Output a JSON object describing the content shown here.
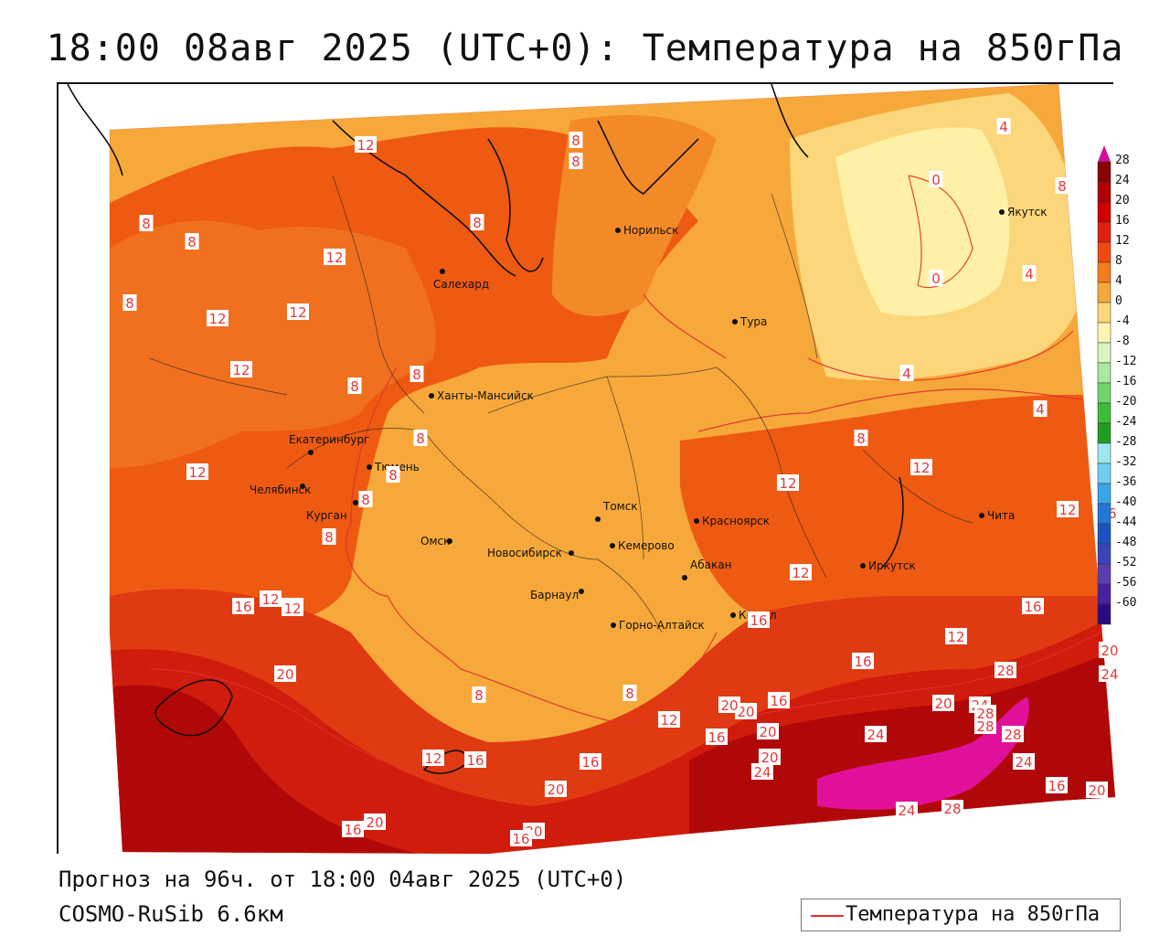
{
  "title": "18:00 08авг 2025 (UTC+0): Температура на 850гПа",
  "footer": {
    "forecast": "Прогноз на 96ч. от 18:00 04авг 2025 (UTC+0)",
    "model": "COSMO-RuSib 6.6км"
  },
  "legend": {
    "line_label": "Температура на 850гПа",
    "line_color": "#e03030"
  },
  "colorbar": {
    "ticks": [
      "28",
      "24",
      "20",
      "16",
      "12",
      "8",
      "4",
      "0",
      "-4",
      "-8",
      "-12",
      "-16",
      "-20",
      "-24",
      "-28",
      "-32",
      "-36",
      "-40",
      "-44",
      "-48",
      "-52",
      "-56",
      "-60"
    ],
    "colors": [
      "#8b0000",
      "#b00000",
      "#d00000",
      "#e02010",
      "#ee4a10",
      "#f57c1a",
      "#f7a83a",
      "#fbd67a",
      "#fff4b0",
      "#d8f5c0",
      "#a8e8a0",
      "#6fd46c",
      "#3cbc3c",
      "#1f9d1f",
      "#9fe7ee",
      "#6fcdf0",
      "#3aa4e6",
      "#2276d6",
      "#1b52c0",
      "#3a44b8",
      "#5b3db0",
      "#4a1fa0",
      "#2a0c80"
    ]
  },
  "cities": [
    {
      "name": "Норильск"
    },
    {
      "name": "Салехард"
    },
    {
      "name": "Тура"
    },
    {
      "name": "Якутск"
    },
    {
      "name": "Ханты-Мансийск"
    },
    {
      "name": "Екатеринбург"
    },
    {
      "name": "Тюмень"
    },
    {
      "name": "Челябинск"
    },
    {
      "name": "Курган"
    },
    {
      "name": "Омск"
    },
    {
      "name": "Томск"
    },
    {
      "name": "Новосибирск"
    },
    {
      "name": "Кемерово"
    },
    {
      "name": "Барнаул"
    },
    {
      "name": "Красноярск"
    },
    {
      "name": "Абакан"
    },
    {
      "name": "Кызыл"
    },
    {
      "name": "Горно-Алтайск"
    },
    {
      "name": "Иркутск"
    },
    {
      "name": "Чита"
    }
  ],
  "isotherm_labels": [
    "12",
    "8",
    "8",
    "8",
    "8",
    "12",
    "12",
    "8",
    "12",
    "12",
    "12",
    "8",
    "8",
    "8",
    "8",
    "12",
    "8",
    "8",
    "16",
    "12",
    "20",
    "8",
    "8",
    "12",
    "16",
    "20",
    "16",
    "12",
    "16",
    "20",
    "20",
    "16",
    "24",
    "20",
    "20",
    "16",
    "20",
    "16",
    "28",
    "24",
    "20",
    "24",
    "28",
    "24",
    "16",
    "28",
    "4",
    "0",
    "4",
    "0",
    "4",
    "8",
    "4",
    "8",
    "12",
    "12",
    "12",
    "16",
    "12",
    "16",
    "20",
    "24",
    "20",
    "24",
    "28",
    "28",
    "8",
    "12",
    "16",
    "20",
    "16",
    "12"
  ],
  "colors": {
    "title_text": "#111111",
    "isotherm_line": "#e03030"
  }
}
